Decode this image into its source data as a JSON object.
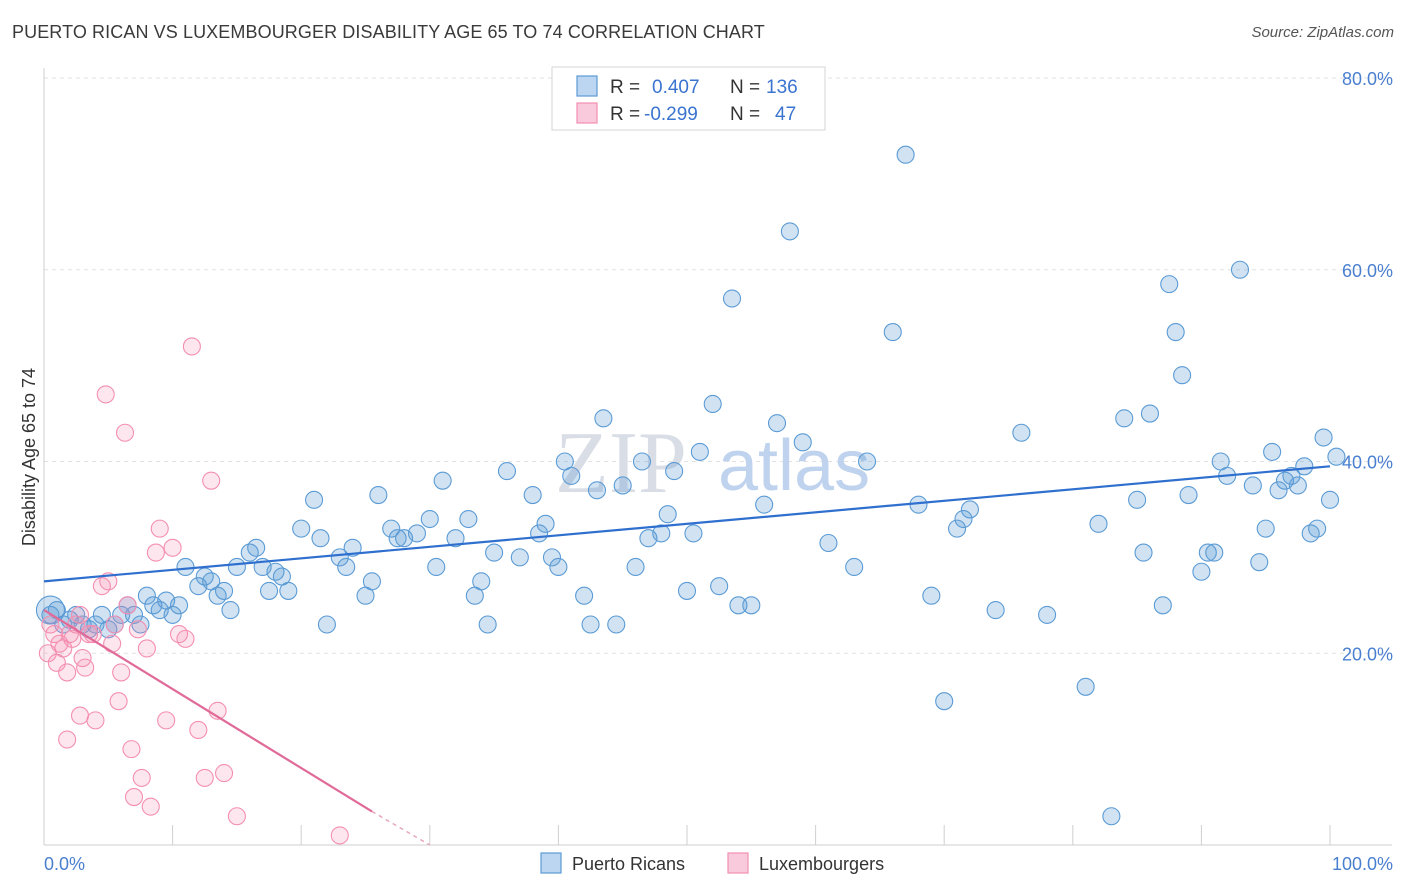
{
  "header": {
    "title": "PUERTO RICAN VS LUXEMBOURGER DISABILITY AGE 65 TO 74 CORRELATION CHART",
    "source": "Source: ZipAtlas.com"
  },
  "watermark": {
    "zip": "ZIP",
    "atlas": "atlas"
  },
  "legend": {
    "rows": [
      {
        "r_label": "R =",
        "r_value": "0.407",
        "n_label": "N =",
        "n_value": "136",
        "color": "#5b9bd5"
      },
      {
        "r_label": "R =",
        "r_value": "-0.299",
        "n_label": "N =",
        "n_value": "47",
        "color": "#f48fb1"
      }
    ]
  },
  "bottom_legend": [
    "Puerto Ricans",
    "Luxembourgers"
  ],
  "chart_data": {
    "type": "scatter",
    "title": "PUERTO RICAN VS LUXEMBOURGER DISABILITY AGE 65 TO 74 CORRELATION CHART",
    "xlabel": "",
    "ylabel": "Disability Age 65 to 74",
    "xlim": [
      0,
      100
    ],
    "ylim": [
      0,
      80
    ],
    "x_tick_labels": [
      "0.0%",
      "100.0%"
    ],
    "y_ticks": [
      20,
      40,
      60,
      80
    ],
    "y_tick_labels": [
      "20.0%",
      "40.0%",
      "60.0%",
      "80.0%"
    ],
    "grid": true,
    "colors": {
      "blue": "#5b9bd5",
      "blue_line": "#2f6fce",
      "pink": "#f48fb1",
      "pink_line": "#e06a98"
    },
    "series": [
      {
        "name": "Puerto Ricans",
        "trend": {
          "x": [
            0,
            100
          ],
          "y": [
            27.5,
            39.5
          ]
        },
        "points": [
          [
            0.5,
            24
          ],
          [
            1,
            24.5
          ],
          [
            1.5,
            23
          ],
          [
            2,
            23.5
          ],
          [
            2.5,
            24
          ],
          [
            3,
            23
          ],
          [
            3.5,
            22.5
          ],
          [
            4,
            23
          ],
          [
            4.5,
            24
          ],
          [
            5,
            22.5
          ],
          [
            5.5,
            23
          ],
          [
            6,
            24
          ],
          [
            6.5,
            25
          ],
          [
            7,
            24
          ],
          [
            7.5,
            23
          ],
          [
            8,
            26
          ],
          [
            8.5,
            25
          ],
          [
            9,
            24.5
          ],
          [
            9.5,
            25.5
          ],
          [
            10,
            24
          ],
          [
            10.5,
            25
          ],
          [
            11,
            29
          ],
          [
            12,
            27
          ],
          [
            12.5,
            28
          ],
          [
            13,
            27.5
          ],
          [
            13.5,
            26
          ],
          [
            14,
            26.5
          ],
          [
            14.5,
            24.5
          ],
          [
            15,
            29
          ],
          [
            16,
            30.5
          ],
          [
            16.5,
            31
          ],
          [
            17,
            29
          ],
          [
            17.5,
            26.5
          ],
          [
            18,
            28.5
          ],
          [
            18.5,
            28
          ],
          [
            19,
            26.5
          ],
          [
            20,
            33
          ],
          [
            21,
            36
          ],
          [
            21.5,
            32
          ],
          [
            22,
            23
          ],
          [
            23,
            30
          ],
          [
            23.5,
            29
          ],
          [
            24,
            31
          ],
          [
            25,
            26
          ],
          [
            25.5,
            27.5
          ],
          [
            26,
            36.5
          ],
          [
            27,
            33
          ],
          [
            27.5,
            32
          ],
          [
            28,
            32
          ],
          [
            29,
            32.5
          ],
          [
            30,
            34
          ],
          [
            30.5,
            29
          ],
          [
            31,
            38
          ],
          [
            32,
            32
          ],
          [
            33,
            34
          ],
          [
            33.5,
            26
          ],
          [
            34,
            27.5
          ],
          [
            34.5,
            23
          ],
          [
            35,
            30.5
          ],
          [
            36,
            39
          ],
          [
            37,
            30
          ],
          [
            38,
            36.5
          ],
          [
            38.5,
            32.5
          ],
          [
            39,
            33.5
          ],
          [
            39.5,
            30
          ],
          [
            40,
            29
          ],
          [
            40.5,
            40
          ],
          [
            41,
            38.5
          ],
          [
            42,
            26
          ],
          [
            42.5,
            23
          ],
          [
            43,
            37
          ],
          [
            43.5,
            44.5
          ],
          [
            44.5,
            23
          ],
          [
            45,
            37.5
          ],
          [
            46,
            29
          ],
          [
            46.5,
            40
          ],
          [
            47,
            32
          ],
          [
            48,
            32.5
          ],
          [
            48.5,
            34.5
          ],
          [
            49,
            39
          ],
          [
            50,
            26.5
          ],
          [
            50.5,
            32.5
          ],
          [
            51,
            41
          ],
          [
            52,
            46
          ],
          [
            52.5,
            27
          ],
          [
            53.5,
            57
          ],
          [
            54,
            25
          ],
          [
            55,
            25
          ],
          [
            56,
            35.5
          ],
          [
            57,
            44
          ],
          [
            58,
            64
          ],
          [
            59,
            42
          ],
          [
            61,
            31.5
          ],
          [
            63,
            29
          ],
          [
            64,
            40
          ],
          [
            66,
            53.5
          ],
          [
            67,
            72
          ],
          [
            68,
            35.5
          ],
          [
            69,
            26
          ],
          [
            70,
            15
          ],
          [
            71,
            33
          ],
          [
            71.5,
            34
          ],
          [
            72,
            35
          ],
          [
            74,
            24.5
          ],
          [
            76,
            43
          ],
          [
            78,
            24
          ],
          [
            81,
            16.5
          ],
          [
            82,
            33.5
          ],
          [
            83,
            3
          ],
          [
            84,
            44.5
          ],
          [
            85,
            36
          ],
          [
            85.5,
            30.5
          ],
          [
            86,
            45
          ],
          [
            87,
            25
          ],
          [
            87.5,
            58.5
          ],
          [
            88,
            53.5
          ],
          [
            88.5,
            49
          ],
          [
            89,
            36.5
          ],
          [
            90,
            28.5
          ],
          [
            90.5,
            30.5
          ],
          [
            91,
            30.5
          ],
          [
            91.5,
            40
          ],
          [
            92,
            38.5
          ],
          [
            93,
            60
          ],
          [
            94,
            37.5
          ],
          [
            94.5,
            29.5
          ],
          [
            95,
            33
          ],
          [
            95.5,
            41
          ],
          [
            96,
            37
          ],
          [
            96.5,
            38
          ],
          [
            97,
            38.5
          ],
          [
            97.5,
            37.5
          ],
          [
            98,
            39.5
          ],
          [
            98.5,
            32.5
          ],
          [
            99,
            33
          ],
          [
            99.5,
            42.5
          ],
          [
            100,
            36
          ],
          [
            100.5,
            40.5
          ]
        ]
      },
      {
        "name": "Luxembourgers",
        "trend": {
          "x": [
            0,
            25.5
          ],
          "y": [
            24.5,
            3.5
          ],
          "dashed_to": {
            "x": 30,
            "y": 0
          }
        },
        "points": [
          [
            0.3,
            20
          ],
          [
            0.5,
            23
          ],
          [
            0.8,
            22
          ],
          [
            1,
            19
          ],
          [
            1.2,
            21
          ],
          [
            1.5,
            20.5
          ],
          [
            1.8,
            18
          ],
          [
            2,
            22
          ],
          [
            2.2,
            21.5
          ],
          [
            2.5,
            23
          ],
          [
            2.8,
            24
          ],
          [
            3,
            19.5
          ],
          [
            3.2,
            18.5
          ],
          [
            3.5,
            22
          ],
          [
            3.8,
            22
          ],
          [
            4,
            13
          ],
          [
            4.5,
            27
          ],
          [
            4.8,
            47
          ],
          [
            5,
            27.5
          ],
          [
            5.3,
            21
          ],
          [
            5.5,
            23
          ],
          [
            5.8,
            15
          ],
          [
            6,
            18
          ],
          [
            6.3,
            43
          ],
          [
            6.5,
            25
          ],
          [
            6.8,
            10
          ],
          [
            7,
            5
          ],
          [
            7.3,
            22.5
          ],
          [
            7.6,
            7
          ],
          [
            8,
            20.5
          ],
          [
            8.3,
            4
          ],
          [
            8.7,
            30.5
          ],
          [
            9,
            33
          ],
          [
            9.5,
            13
          ],
          [
            10,
            31
          ],
          [
            10.5,
            22
          ],
          [
            11,
            21.5
          ],
          [
            11.5,
            52
          ],
          [
            12,
            12
          ],
          [
            12.5,
            7
          ],
          [
            13,
            38
          ],
          [
            13.5,
            14
          ],
          [
            14,
            7.5
          ],
          [
            15,
            3
          ],
          [
            1.8,
            11
          ],
          [
            2.8,
            13.5
          ],
          [
            23,
            1
          ]
        ]
      }
    ]
  }
}
